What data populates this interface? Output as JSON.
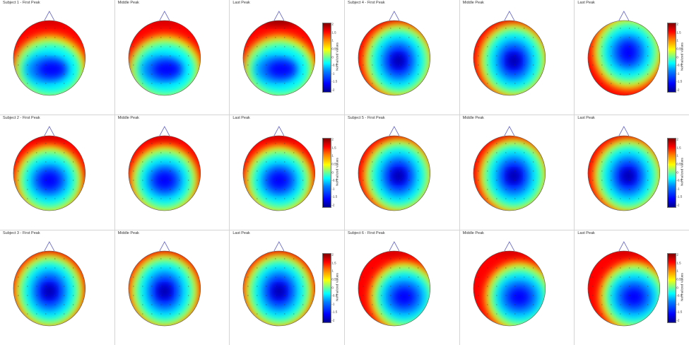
{
  "figure": {
    "panels": [
      {
        "title": "Subject 1 - First Peak",
        "variant": 0
      },
      {
        "title": "Middle Peak",
        "variant": 0
      },
      {
        "title": "Last Peak",
        "variant": 0
      },
      {
        "title": "Subject 4 - First Peak",
        "variant": 1
      },
      {
        "title": "Middle Peak",
        "variant": 1
      },
      {
        "title": "Last Peak",
        "variant": 2
      },
      {
        "title": "Subject 2 - First Peak",
        "variant": 3
      },
      {
        "title": "Middle Peak",
        "variant": 3
      },
      {
        "title": "Last Peak",
        "variant": 3
      },
      {
        "title": "Subject 5 - First Peak",
        "variant": 1
      },
      {
        "title": "Middle Peak",
        "variant": 1
      },
      {
        "title": "Last Peak",
        "variant": 1
      },
      {
        "title": "Subject 3 - First Peak",
        "variant": 1
      },
      {
        "title": "Middle Peak",
        "variant": 1
      },
      {
        "title": "Last Peak",
        "variant": 1
      },
      {
        "title": "Subject 6 - First Peak",
        "variant": 4
      },
      {
        "title": "Middle Peak",
        "variant": 4
      },
      {
        "title": "Last Peak",
        "variant": 4
      }
    ],
    "colorbar": {
      "label": "Normalized Values",
      "ticks": [
        "2",
        "1.5",
        "1",
        "0.5",
        "0",
        "-0.5",
        "-1",
        "-1.5",
        "-2"
      ],
      "range": [
        -2,
        2
      ]
    },
    "colors": {
      "dark_red": "#800000",
      "red": "#ff0000",
      "orange": "#ff8000",
      "yellow": "#ffff00",
      "green": "#80ff80",
      "cyan": "#00ffff",
      "light_blue": "#0080ff",
      "blue": "#0000ff",
      "dark_blue": "#00008f",
      "nose": "#6666cc"
    }
  }
}
